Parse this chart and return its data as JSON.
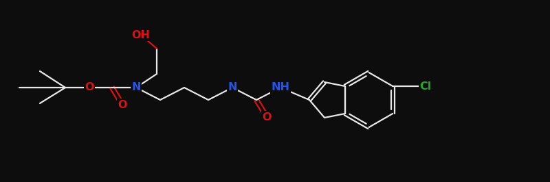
{
  "background_color": "#0d0d0d",
  "bond_color": "#e8e8e8",
  "atom_colors": {
    "O": "#dd1111",
    "N": "#2255ee",
    "Cl": "#22aa22",
    "C": "#e8e8e8"
  },
  "figsize": [
    8.0,
    2.66
  ],
  "dpi": 100,
  "lw": 1.6,
  "fs": 11.5
}
